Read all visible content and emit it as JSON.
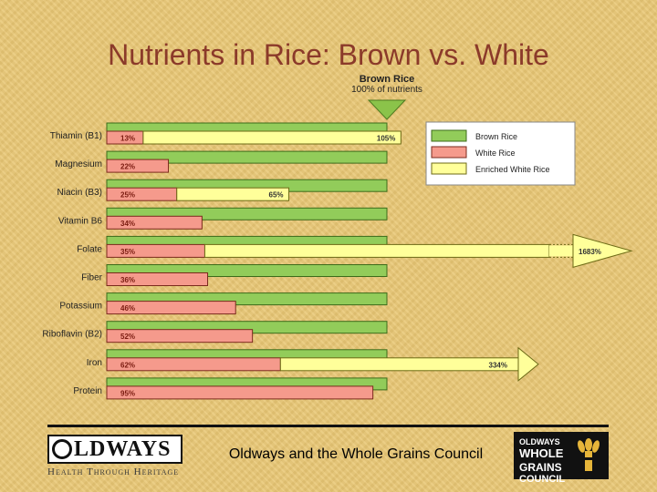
{
  "title": "Nutrients in Rice: Brown vs. White",
  "chart_data": {
    "type": "bar",
    "orientation": "horizontal",
    "xlabel": "",
    "ylabel": "",
    "unit": "% of brown rice nutrients",
    "reference": {
      "title": "Brown Rice",
      "subtitle": "100% of nutrients",
      "value": 100
    },
    "categories": [
      "Thiamin (B1)",
      "Magnesium",
      "Niacin (B3)",
      "Vitamin B6",
      "Folate",
      "Fiber",
      "Potassium",
      "Riboflavin (B2)",
      "Iron",
      "Protein"
    ],
    "series": [
      {
        "name": "Brown Rice",
        "color": "#92cc5a",
        "values": [
          100,
          100,
          100,
          100,
          100,
          100,
          100,
          100,
          100,
          100
        ]
      },
      {
        "name": "White Rice",
        "color": "#f59a8c",
        "values": [
          13,
          22,
          25,
          34,
          35,
          36,
          46,
          52,
          62,
          95
        ],
        "labels": [
          "13%",
          "22%",
          "25%",
          "34%",
          "35%",
          "36%",
          "46%",
          "52%",
          "62%",
          "95%"
        ]
      },
      {
        "name": "Enriched White Rice",
        "color": "#ffff9a",
        "values": [
          105,
          null,
          65,
          null,
          1683,
          null,
          null,
          null,
          334,
          null
        ],
        "labels": [
          "105%",
          null,
          "65%",
          null,
          "1683%",
          null,
          null,
          null,
          "334%",
          null
        ],
        "arrow": [
          false,
          null,
          false,
          null,
          true,
          null,
          null,
          null,
          true,
          null
        ]
      }
    ],
    "legend": {
      "position": "top-right",
      "items": [
        "Brown Rice",
        "White Rice",
        "Enriched White Rice"
      ]
    },
    "grid": false
  },
  "footer": {
    "logo_left": "OLDWAYS",
    "tagline": "Health Through Heritage",
    "center_text": "Oldways and the Whole Grains Council",
    "logo_right": {
      "line1": "OLDWAYS",
      "line2": "WHOLE",
      "line3": "GRAINS",
      "line4": "COUNCIL"
    }
  },
  "colors": {
    "title": "#8b3a2a",
    "background": "#e9c877",
    "arrow": "#8bc34a"
  }
}
